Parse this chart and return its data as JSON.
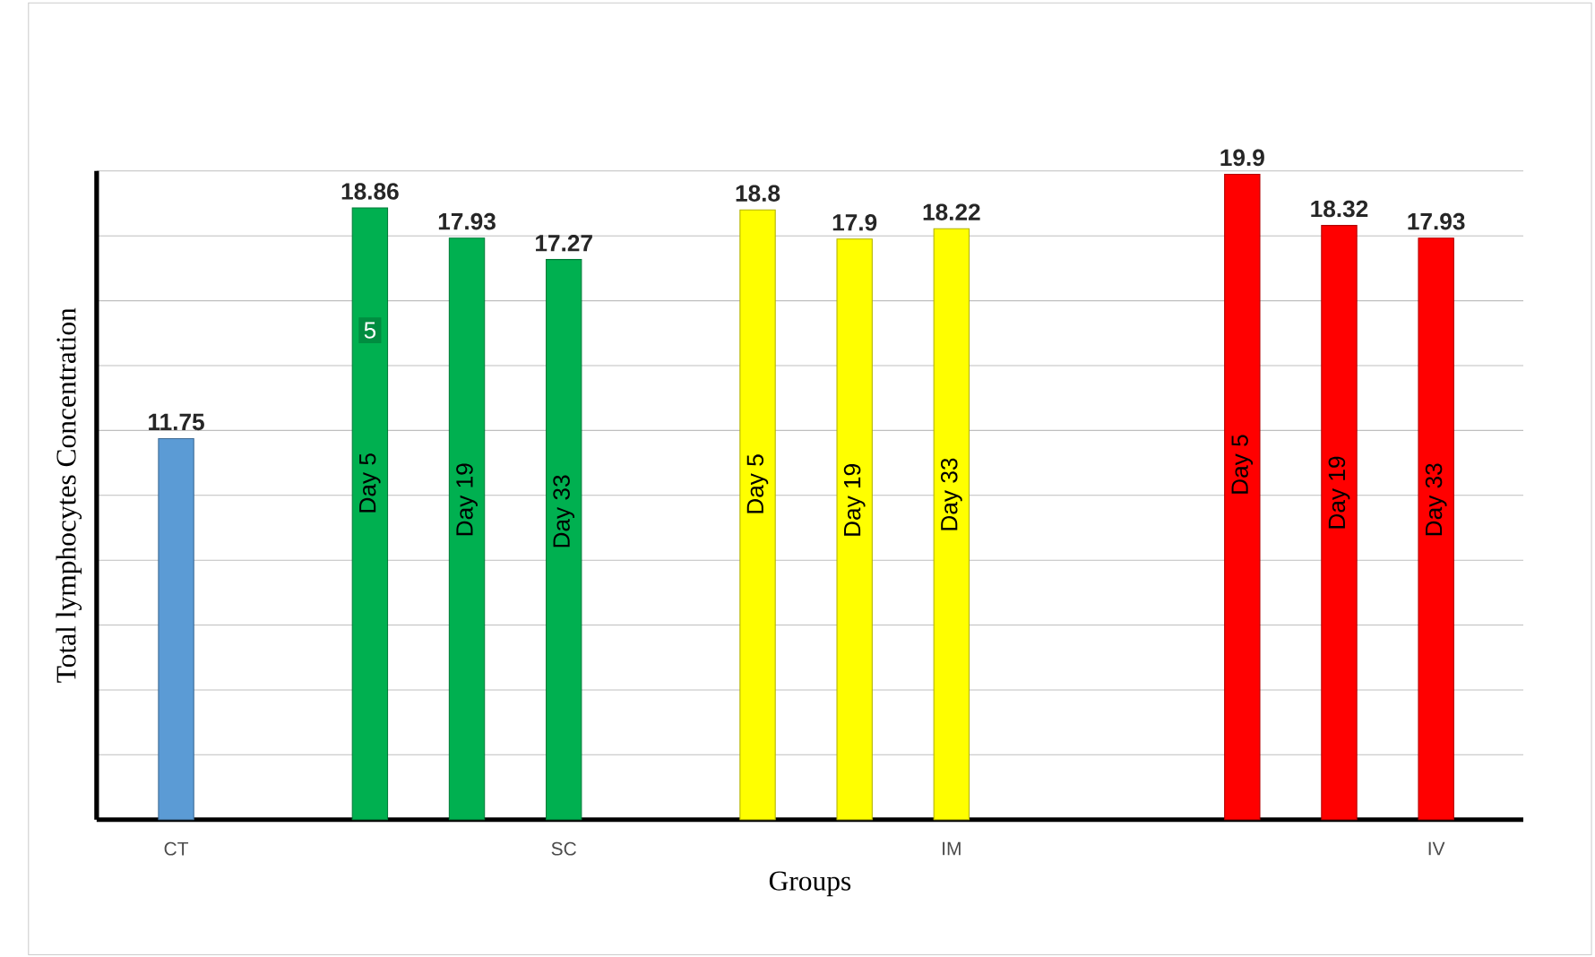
{
  "chart_data": {
    "type": "bar",
    "xlabel": "Groups",
    "ylabel": "Total lymphocytes Concentration",
    "categories": [
      "CT",
      null,
      null,
      null,
      "SC",
      null,
      null,
      null,
      "IM",
      null,
      null,
      null,
      null,
      "IV"
    ],
    "values": [
      11.75,
      null,
      18.86,
      17.93,
      17.27,
      null,
      18.8,
      17.9,
      18.22,
      null,
      null,
      19.9,
      18.32,
      17.93
    ],
    "colors": [
      "#5b9bd5",
      null,
      "#00b050",
      "#00b050",
      "#00b050",
      null,
      "#ffff00",
      "#ffff00",
      "#ffff00",
      null,
      null,
      "#ff0000",
      "#ff0000",
      "#ff0000"
    ],
    "ylim": [
      0,
      20
    ],
    "yticks": [
      {
        "value": 0,
        "label": null
      },
      {
        "value": 2,
        "label": null
      },
      {
        "value": 4,
        "label": null
      },
      {
        "value": 6,
        "label": null
      },
      {
        "value": 8,
        "label": null
      },
      {
        "value": 10,
        "label": null
      },
      {
        "value": 12,
        "label": null
      },
      {
        "value": 14,
        "label": null
      },
      {
        "value": 16,
        "label": null
      },
      {
        "value": 18,
        "label": null
      },
      {
        "value": 20,
        "label": null
      }
    ],
    "grid": "y",
    "tick_labels": "x",
    "data_labels": true,
    "annotations": [
      "Day 5",
      "Day 19",
      "Day 33",
      "Day 5",
      "Day 19",
      "Day 33",
      "Day 5",
      "Day 19",
      "Day 33",
      "5"
    ]
  }
}
